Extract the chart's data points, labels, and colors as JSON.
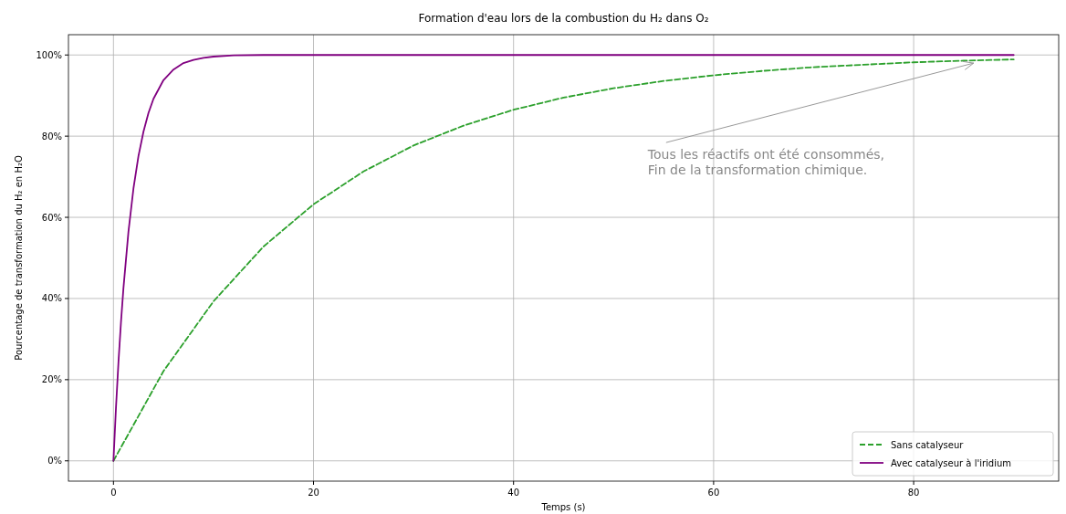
{
  "chart_data": {
    "type": "line",
    "title": "Formation d'eau lors de la combustion du H₂ dans O₂",
    "xlabel": "Temps (s)",
    "ylabel": "Pourcentage de transformation du H₂ en H₂O",
    "xlim": [
      -4.5,
      94.5
    ],
    "xticks": [
      0,
      20,
      40,
      60,
      80
    ],
    "ylim": [
      -5,
      105
    ],
    "yticks": [
      {
        "value": 0,
        "label": "0%"
      },
      {
        "value": 20,
        "label": "20%"
      },
      {
        "value": 40,
        "label": "40%"
      },
      {
        "value": 60,
        "label": "60%"
      },
      {
        "value": 80,
        "label": "80%"
      },
      {
        "value": 100,
        "label": "100%"
      }
    ],
    "grid": true,
    "legend": "bottom right",
    "series": [
      {
        "name": "Sans catalyseur",
        "color": "#2ca02c",
        "line_style": "dashed",
        "x": [
          0,
          5,
          10,
          15,
          20,
          25,
          30,
          35,
          40,
          45,
          50,
          55,
          60,
          65,
          70,
          75,
          80,
          85,
          90
        ],
        "values": [
          0,
          22.1,
          39.3,
          52.8,
          63.2,
          71.3,
          77.7,
          82.6,
          86.5,
          89.5,
          91.8,
          93.6,
          95.0,
          96.1,
          97.0,
          97.6,
          98.2,
          98.6,
          98.9
        ]
      },
      {
        "name": "Avec catalyseur à l'iridium",
        "color": "#800080",
        "line_style": "solid",
        "x": [
          0,
          0.25,
          0.5,
          0.75,
          1,
          1.5,
          2,
          2.5,
          3,
          3.5,
          4,
          5,
          6,
          7,
          8,
          9,
          10,
          12,
          15,
          90
        ],
        "values": [
          0,
          13.0,
          24.3,
          34.1,
          42.6,
          56.5,
          67.1,
          75.1,
          81.1,
          85.7,
          89.2,
          93.8,
          96.4,
          98.0,
          98.8,
          99.3,
          99.6,
          99.9,
          100,
          100
        ]
      }
    ],
    "annotations": [
      {
        "text": "Tous les réactifs ont été consommés,\nFin de la transformation chimique.",
        "x": 86,
        "y": 98
      }
    ]
  }
}
